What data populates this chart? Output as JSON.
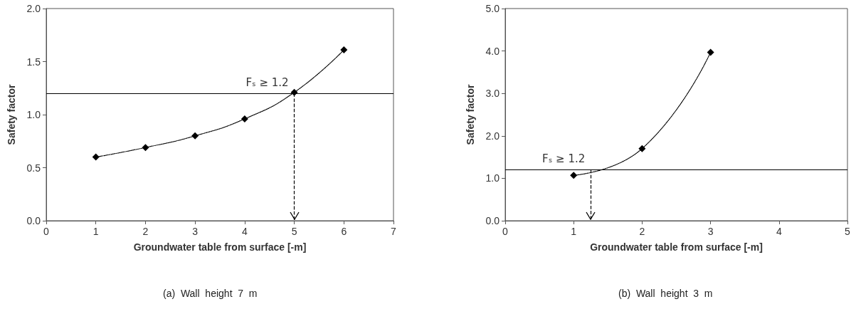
{
  "chart_data": [
    {
      "type": "line",
      "xlabel": "Groundwater table from surface [-m]",
      "ylabel": "Safety factor",
      "x": [
        1,
        2,
        3,
        4,
        5,
        6
      ],
      "series": [
        {
          "color": "#000000",
          "values": [
            0.6,
            0.69,
            0.8,
            0.96,
            1.21,
            1.61
          ]
        }
      ],
      "xlim": [
        0,
        7
      ],
      "xticks": [
        0,
        1,
        2,
        3,
        4,
        5,
        6,
        7
      ],
      "ylim": [
        0,
        2
      ],
      "yticks": [
        {
          "value": 0,
          "label": "0.0"
        },
        {
          "value": 0.5,
          "label": "0.5"
        },
        {
          "value": 1,
          "label": "1.0"
        },
        {
          "value": 1.5,
          "label": "1.5"
        },
        {
          "value": 2,
          "label": "2.0"
        }
      ],
      "ref_lines": [
        {
          "axis": "y",
          "value": 1.2,
          "label": "Fₛ ≥ 1.2",
          "color": "#000000",
          "line_style": "solid"
        },
        {
          "axis": "x",
          "value": 5,
          "color": "#000000",
          "line_style": "dashed"
        }
      ],
      "annotations": [
        "(a)  Wall  height  7  m"
      ],
      "grid": false,
      "marker": "diamond",
      "line_style": "dotted"
    },
    {
      "type": "line",
      "xlabel": "Groundwater table from surface [-m]",
      "ylabel": "Safety factor",
      "x": [
        1,
        2,
        3
      ],
      "series": [
        {
          "color": "#000000",
          "values": [
            1.07,
            1.7,
            3.97
          ]
        }
      ],
      "xlim": [
        0,
        5
      ],
      "xticks": [
        0,
        1,
        2,
        3,
        4,
        5
      ],
      "ylim": [
        0,
        5
      ],
      "yticks": [
        {
          "value": 0,
          "label": "0.0"
        },
        {
          "value": 1,
          "label": "1.0"
        },
        {
          "value": 2,
          "label": "2.0"
        },
        {
          "value": 3,
          "label": "3.0"
        },
        {
          "value": 4,
          "label": "4.0"
        },
        {
          "value": 5,
          "label": "5.0"
        }
      ],
      "ref_lines": [
        {
          "axis": "y",
          "value": 1.2,
          "label": "Fₛ ≥ 1.2",
          "color": "#000000",
          "line_style": "solid"
        },
        {
          "axis": "x",
          "value": 1.25,
          "color": "#000000",
          "line_style": "dashed"
        }
      ],
      "annotations": [
        "(b)  Wall  height  3  m"
      ],
      "grid": false,
      "marker": "diamond",
      "line_style": "dotted"
    }
  ]
}
